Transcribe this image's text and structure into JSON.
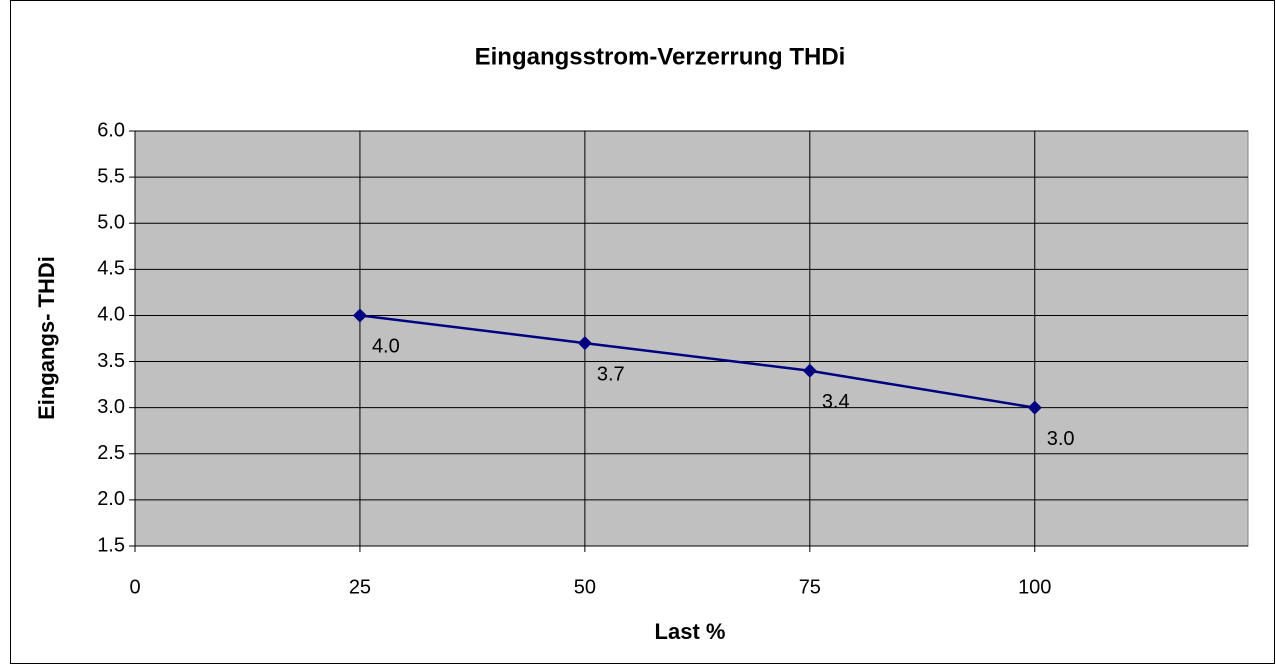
{
  "chart_data": {
    "type": "line",
    "title": "Eingangsstrom-Verzerrung THDi",
    "x_label": "Last %",
    "y_label": "Eingangs- THDi",
    "x": [
      25,
      50,
      75,
      100
    ],
    "values": [
      4.0,
      3.7,
      3.4,
      3.0
    ],
    "value_labels": [
      "4.0",
      "3.7",
      "3.4",
      "3.0"
    ],
    "color": "#000080",
    "xlim": [
      0,
      123.7
    ],
    "xticks": [
      0,
      25,
      50,
      75,
      100
    ],
    "ylim": [
      1.5,
      6.0
    ],
    "yticks": [
      {
        "value": 1.5,
        "label": "1.5"
      },
      {
        "value": 2,
        "label": "2.0"
      },
      {
        "value": 2.5,
        "label": "2.5"
      },
      {
        "value": 3,
        "label": "3.0"
      },
      {
        "value": 3.5,
        "label": "3.5"
      },
      {
        "value": 4,
        "label": "4.0"
      },
      {
        "value": 4.5,
        "label": "4.5"
      },
      {
        "value": 5,
        "label": "5.0"
      },
      {
        "value": 5.5,
        "label": "5.5"
      },
      {
        "value": 6,
        "label": "6.0"
      }
    ],
    "grid": true,
    "plot_background": "#c0c0c0"
  }
}
